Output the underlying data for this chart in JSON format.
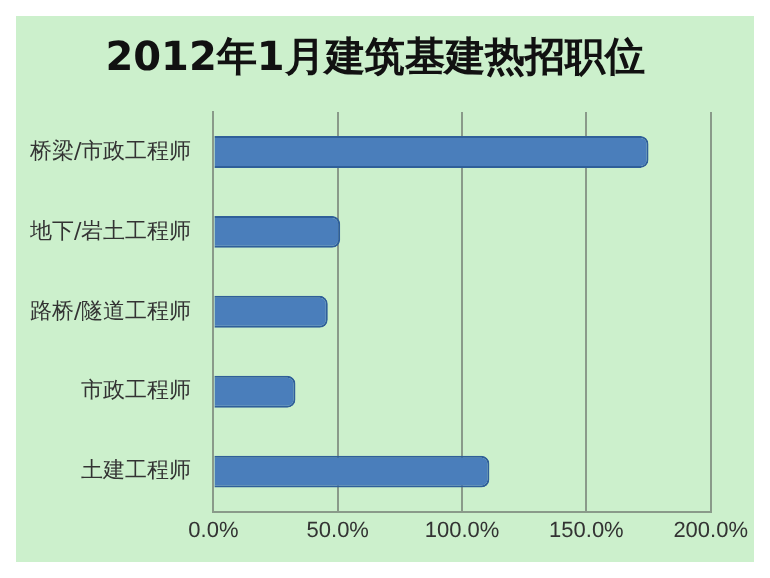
{
  "chart_data": {
    "type": "bar",
    "orientation": "horizontal",
    "title": "2012年1月建筑基建热招职位",
    "categories": [
      "桥梁/市政工程师",
      "地下/岩土工程师",
      "路桥/隧道工程师",
      "市政工程师",
      "土建工程师"
    ],
    "values": [
      175,
      51,
      46,
      33,
      111
    ],
    "color": "#4a7ebb",
    "xlim": [
      0,
      200
    ],
    "xticks": [
      {
        "value": 0,
        "label": "0.0%"
      },
      {
        "value": 50,
        "label": "50.0%"
      },
      {
        "value": 100,
        "label": "100.0%"
      },
      {
        "value": 150,
        "label": "150.0%"
      },
      {
        "value": 200,
        "label": "200.0%"
      }
    ],
    "grid": "x",
    "legend": false
  }
}
